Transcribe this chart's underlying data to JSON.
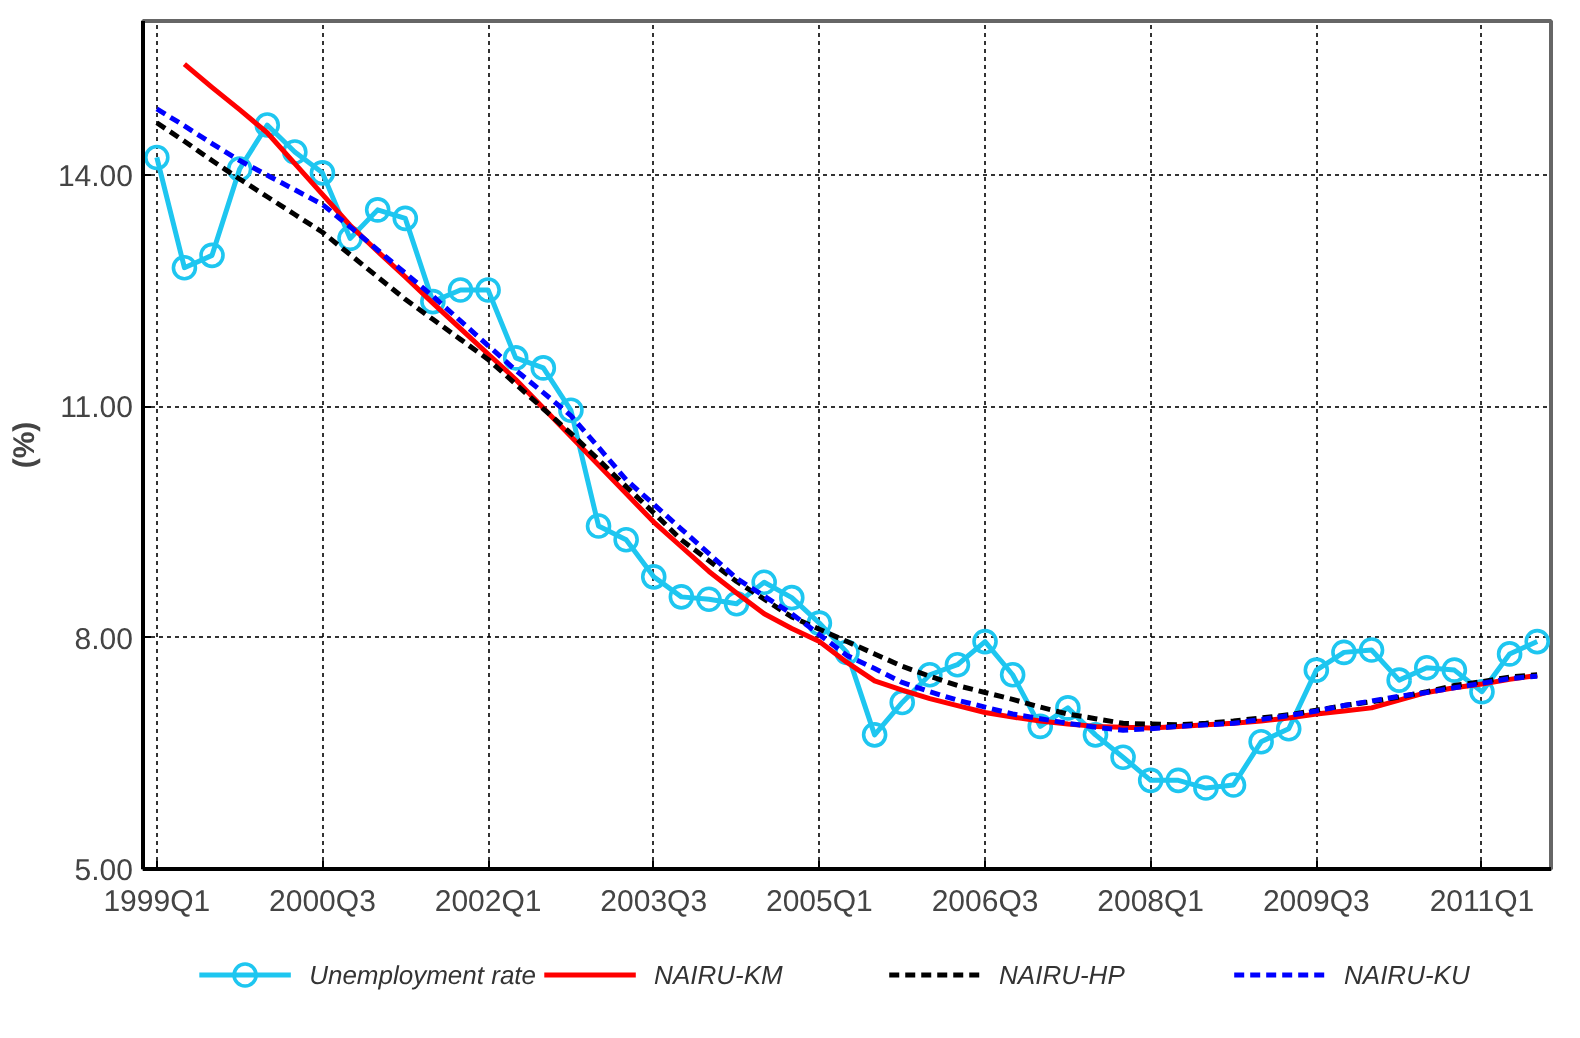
{
  "chart_data": {
    "type": "line",
    "ylabel": "(%)",
    "ylim": [
      5,
      16
    ],
    "categories": [
      "1999Q1",
      null,
      null,
      null,
      null,
      null,
      "2000Q3",
      null,
      null,
      null,
      null,
      null,
      "2002Q1",
      null,
      null,
      null,
      null,
      null,
      "2003Q3",
      null,
      null,
      null,
      null,
      null,
      "2005Q1",
      null,
      null,
      null,
      null,
      null,
      "2006Q3",
      null,
      null,
      null,
      null,
      null,
      "2008Q1",
      null,
      null,
      null,
      null,
      null,
      "2009Q3",
      null,
      null,
      null,
      null,
      null,
      "2011Q1",
      null,
      null
    ],
    "yticks": [
      {
        "value": 5,
        "label": "5.00"
      },
      {
        "value": 8,
        "label": "8.00"
      },
      {
        "value": 11,
        "label": "11.00"
      },
      {
        "value": 14,
        "label": "14.00"
      }
    ],
    "grid": true,
    "legend": "bottom",
    "series": [
      {
        "name": "Unemployment rate",
        "color": "#1ec6f0",
        "marker": "circle",
        "line_style": "solid",
        "values": [
          14.23,
          12.8,
          12.96,
          14.08,
          14.65,
          14.3,
          14.03,
          13.18,
          13.55,
          13.44,
          12.36,
          12.51,
          12.51,
          11.63,
          11.5,
          10.95,
          9.45,
          9.27,
          8.79,
          8.53,
          8.5,
          8.44,
          8.72,
          8.52,
          8.19,
          7.81,
          6.74,
          7.16,
          7.52,
          7.65,
          7.95,
          7.52,
          6.85,
          7.09,
          6.74,
          6.45,
          6.15,
          6.15,
          6.05,
          6.09,
          6.65,
          6.82,
          7.58,
          7.81,
          7.84,
          7.45,
          7.61,
          7.58,
          7.3,
          7.79,
          7.95
        ]
      },
      {
        "name": "NAIRU-KM",
        "color": "#ff0000",
        "marker": "none",
        "line_style": "solid",
        "values": [
          null,
          15.44,
          15.14,
          14.85,
          14.55,
          14.15,
          13.75,
          13.35,
          13.01,
          12.68,
          12.34,
          12.01,
          11.68,
          11.35,
          10.98,
          10.61,
          10.24,
          9.87,
          9.5,
          9.18,
          8.86,
          8.58,
          8.31,
          8.12,
          7.95,
          7.68,
          7.44,
          7.32,
          7.21,
          7.12,
          7.03,
          6.97,
          6.92,
          6.88,
          6.85,
          6.84,
          6.83,
          6.85,
          6.87,
          6.89,
          6.92,
          6.96,
          7.01,
          7.05,
          7.09,
          7.19,
          7.29,
          7.35,
          7.4,
          7.46,
          7.51
        ]
      },
      {
        "name": "NAIRU-HP",
        "color": "#000000",
        "marker": "none",
        "line_style": "dashed",
        "values": [
          14.68,
          14.44,
          14.19,
          13.95,
          13.72,
          13.49,
          13.26,
          12.97,
          12.68,
          12.39,
          12.13,
          11.87,
          11.61,
          11.29,
          10.97,
          10.65,
          10.31,
          9.96,
          9.62,
          9.27,
          9.0,
          8.73,
          8.5,
          8.27,
          8.11,
          7.95,
          7.79,
          7.63,
          7.5,
          7.38,
          7.29,
          7.2,
          7.1,
          7.01,
          6.95,
          6.89,
          6.88,
          6.87,
          6.89,
          6.92,
          6.96,
          7.0,
          7.06,
          7.12,
          7.17,
          7.23,
          7.3,
          7.38,
          7.43,
          7.49,
          7.52
        ]
      },
      {
        "name": "NAIRU-KU",
        "color": "#0000ff",
        "marker": "none",
        "line_style": "dashed",
        "values": [
          14.86,
          14.64,
          14.41,
          14.19,
          14.0,
          13.81,
          13.62,
          13.33,
          13.03,
          12.73,
          12.43,
          12.11,
          11.79,
          11.47,
          11.18,
          10.88,
          10.47,
          10.05,
          9.73,
          9.41,
          9.09,
          8.77,
          8.54,
          8.31,
          8.04,
          7.77,
          7.6,
          7.42,
          7.3,
          7.19,
          7.1,
          7.01,
          6.95,
          6.89,
          6.84,
          6.8,
          6.82,
          6.85,
          6.87,
          6.89,
          6.94,
          6.99,
          7.05,
          7.12,
          7.18,
          7.24,
          7.29,
          7.35,
          7.41,
          7.47,
          7.5
        ]
      }
    ]
  }
}
